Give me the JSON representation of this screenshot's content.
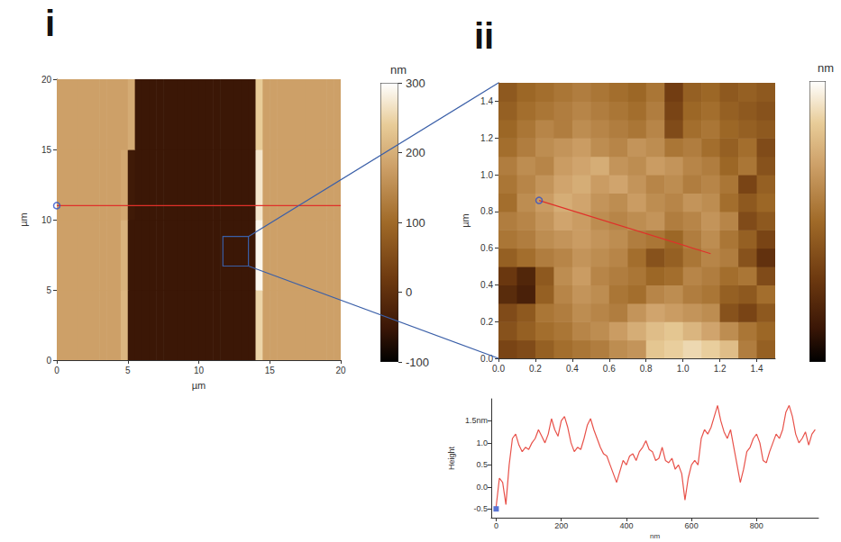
{
  "chart_data": [
    {
      "type": "heatmap",
      "panel": "i",
      "x_label": "µm",
      "y_label": "µm",
      "xlim": [
        0,
        20
      ],
      "ylim": [
        0,
        20
      ],
      "xticks": [
        0,
        5,
        10,
        15,
        20
      ],
      "yticks": [
        0,
        5,
        10,
        15,
        20
      ],
      "x_edges": [
        0,
        0.5,
        1,
        1.5,
        2,
        2.5,
        3,
        3.5,
        4,
        4.5,
        5,
        5.5,
        6,
        6.5,
        7,
        7.5,
        8,
        8.5,
        9,
        9.5,
        10,
        10.5,
        11,
        11.5,
        12,
        12.5,
        13,
        13.5,
        14,
        14.5,
        15,
        15.5,
        16,
        16.5,
        17,
        17.5,
        18,
        18.5,
        19,
        19.5,
        20
      ],
      "y_edges": [
        0,
        5,
        10,
        15,
        20
      ],
      "cells": [
        [
          180,
          180,
          180,
          180,
          180,
          180,
          180,
          180,
          180,
          210,
          -50,
          -50,
          -50,
          -50,
          -50,
          -50,
          -50,
          -50,
          -50,
          -50,
          -50,
          -50,
          -50,
          -50,
          -50,
          -50,
          -50,
          -50,
          250,
          180,
          180,
          180,
          180,
          180,
          180,
          180,
          180,
          180,
          180,
          180
        ],
        [
          180,
          180,
          180,
          180,
          180,
          180,
          180,
          180,
          180,
          205,
          -50,
          -50,
          -50,
          -50,
          -50,
          -50,
          -50,
          -50,
          -50,
          -50,
          -50,
          -50,
          -50,
          -50,
          -50,
          -50,
          -50,
          -50,
          290,
          180,
          180,
          180,
          180,
          180,
          180,
          180,
          180,
          180,
          180,
          180
        ],
        [
          180,
          180,
          180,
          180,
          180,
          180,
          180,
          180,
          180,
          190,
          -45,
          -50,
          -50,
          -50,
          -50,
          -50,
          -50,
          -50,
          -50,
          -50,
          -50,
          -50,
          -50,
          -50,
          -50,
          -50,
          -50,
          -50,
          270,
          180,
          180,
          180,
          180,
          180,
          180,
          180,
          180,
          180,
          180,
          180
        ],
        [
          180,
          180,
          180,
          180,
          180,
          180,
          180,
          180,
          180,
          180,
          195,
          -50,
          -50,
          -50,
          -50,
          -50,
          -50,
          -50,
          -50,
          -50,
          -50,
          -50,
          -50,
          -50,
          -50,
          -50,
          -50,
          -50,
          240,
          180,
          180,
          180,
          180,
          180,
          180,
          180,
          180,
          180,
          180,
          180
        ]
      ],
      "colorbar": {
        "title": "nm",
        "range": [
          -100,
          300
        ],
        "ticks": [
          -100,
          0,
          100,
          200,
          300
        ]
      },
      "profile_line": {
        "x": [
          0,
          20
        ],
        "y": [
          11,
          11
        ]
      },
      "zoom_box": {
        "x": [
          11.7,
          13.5
        ],
        "y": [
          6.7,
          8.8
        ]
      }
    },
    {
      "type": "heatmap",
      "panel": "ii",
      "y_label": "µm",
      "xlim": [
        0,
        1.5
      ],
      "ylim": [
        0,
        1.5
      ],
      "xticks": [
        {
          "value": 0,
          "label": "0.0"
        },
        0.2,
        0.4,
        0.6,
        0.8,
        {
          "value": 1,
          "label": "1.0"
        },
        1.2,
        1.4
      ],
      "yticks": [
        {
          "value": 0,
          "label": "0.0"
        },
        0.2,
        0.4,
        0.6,
        0.8,
        {
          "value": 1,
          "label": "1.0"
        },
        1.2,
        1.4
      ],
      "x_edges": [
        0,
        0.1,
        0.2,
        0.3,
        0.4,
        0.5,
        0.6,
        0.7,
        0.8,
        0.9,
        1,
        1.1,
        1.2,
        1.3,
        1.4,
        1.5
      ],
      "y_edges": [
        0,
        0.1,
        0.2,
        0.3,
        0.4,
        0.5,
        0.6,
        0.7,
        0.8,
        0.9,
        1,
        1.1,
        1.2,
        1.3,
        1.4,
        1.5
      ],
      "cells": [
        [
          0.2,
          0.3,
          0.6,
          0.8,
          0.9,
          1.0,
          1.2,
          1.3,
          1.9,
          2.0,
          2.1,
          2.0,
          1.8,
          1.0,
          0.6
        ],
        [
          0.4,
          0.6,
          0.8,
          0.9,
          1.1,
          1.2,
          1.4,
          1.6,
          1.8,
          1.9,
          1.7,
          1.5,
          1.2,
          0.9,
          0.7
        ],
        [
          0.3,
          0.5,
          0.9,
          1.0,
          1.2,
          1.1,
          1.0,
          1.3,
          1.5,
          1.4,
          1.3,
          1.2,
          0.4,
          0.2,
          0.5
        ],
        [
          -0.2,
          -0.4,
          0.6,
          1.1,
          1.3,
          1.2,
          0.9,
          0.8,
          1.1,
          1.2,
          1.0,
          0.9,
          0.6,
          0.5,
          0.8
        ],
        [
          0.0,
          -0.3,
          0.5,
          1.2,
          1.4,
          1.1,
          1.0,
          0.9,
          0.7,
          0.8,
          1.1,
          1.0,
          0.8,
          0.9,
          0.3
        ],
        [
          0.6,
          0.8,
          1.0,
          1.1,
          1.3,
          1.2,
          1.1,
          0.8,
          0.4,
          0.6,
          0.9,
          1.1,
          1.0,
          0.4,
          -0.1
        ],
        [
          0.9,
          1.0,
          1.2,
          1.3,
          1.4,
          1.3,
          1.2,
          1.0,
          0.9,
          0.7,
          1.0,
          1.2,
          0.9,
          0.6,
          0.2
        ],
        [
          1.0,
          1.1,
          1.3,
          1.5,
          1.4,
          1.2,
          1.1,
          1.2,
          1.3,
          1.0,
          1.1,
          1.3,
          1.1,
          0.3,
          0.5
        ],
        [
          0.8,
          1.2,
          1.4,
          1.6,
          1.5,
          1.3,
          1.2,
          1.4,
          1.2,
          1.1,
          1.3,
          1.2,
          0.8,
          0.5,
          0.7
        ],
        [
          0.9,
          1.1,
          1.3,
          1.5,
          1.6,
          1.4,
          1.5,
          1.3,
          1.1,
          1.2,
          1.0,
          1.1,
          0.9,
          0.2,
          0.6
        ],
        [
          1.0,
          1.2,
          1.1,
          1.4,
          1.5,
          1.6,
          1.3,
          1.2,
          1.4,
          1.3,
          1.1,
          1.0,
          0.7,
          0.9,
          0.4
        ],
        [
          0.8,
          1.0,
          1.2,
          1.3,
          1.4,
          1.2,
          1.1,
          1.3,
          1.2,
          0.9,
          1.0,
          0.8,
          0.6,
          0.8,
          0.3
        ],
        [
          0.7,
          0.9,
          1.1,
          1.0,
          1.2,
          1.1,
          1.0,
          0.9,
          1.1,
          0.3,
          0.8,
          0.9,
          0.7,
          0.6,
          0.5
        ],
        [
          0.6,
          0.8,
          0.9,
          1.0,
          1.1,
          1.0,
          0.9,
          0.8,
          1.0,
          0.2,
          0.7,
          0.8,
          0.6,
          0.5,
          0.4
        ],
        [
          0.5,
          0.7,
          0.8,
          0.9,
          1.0,
          0.9,
          0.8,
          0.7,
          0.9,
          0.1,
          0.6,
          0.7,
          0.5,
          0.6,
          0.5
        ]
      ],
      "colorbar": {
        "title": "nm",
        "range": [
          -1,
          2.5
        ]
      },
      "profile_line": {
        "x": [
          0.22,
          1.15
        ],
        "y": [
          0.86,
          0.57
        ]
      }
    },
    {
      "type": "line",
      "x_label": "nm",
      "y_label": "Height",
      "color": "#e8524a",
      "xlim": [
        -15,
        990
      ],
      "ylim": [
        -0.7,
        2.0
      ],
      "xticks": [
        0,
        200,
        400,
        600,
        800
      ],
      "yticks": [
        -0.5,
        {
          "value": 0,
          "label": "0.0"
        },
        0.5,
        {
          "value": 1,
          "label": "1.0"
        },
        {
          "value": 1.5,
          "label": "1.5nm"
        }
      ],
      "cursor": [
        0,
        -0.5
      ],
      "x": [
        0,
        10,
        20,
        30,
        40,
        50,
        60,
        70,
        80,
        90,
        100,
        110,
        120,
        130,
        140,
        150,
        160,
        170,
        180,
        190,
        200,
        210,
        220,
        230,
        240,
        250,
        260,
        270,
        280,
        290,
        300,
        310,
        320,
        330,
        340,
        350,
        360,
        370,
        380,
        390,
        400,
        410,
        420,
        430,
        440,
        450,
        460,
        470,
        480,
        490,
        500,
        510,
        520,
        530,
        540,
        550,
        560,
        570,
        580,
        590,
        600,
        610,
        620,
        630,
        640,
        650,
        660,
        670,
        680,
        690,
        700,
        710,
        720,
        730,
        740,
        750,
        760,
        770,
        780,
        790,
        800,
        810,
        820,
        830,
        840,
        850,
        860,
        870,
        880,
        890,
        900,
        910,
        920,
        930,
        940,
        950,
        960,
        970,
        980
      ],
      "values": [
        -0.45,
        0.2,
        0.1,
        -0.4,
        0.5,
        1.1,
        1.2,
        0.95,
        0.8,
        0.9,
        0.85,
        1.0,
        1.1,
        1.3,
        1.15,
        1.0,
        1.2,
        1.55,
        1.3,
        1.15,
        1.5,
        1.6,
        1.35,
        1.0,
        0.8,
        0.9,
        0.85,
        1.1,
        1.4,
        1.55,
        1.3,
        1.1,
        0.9,
        0.75,
        0.7,
        0.5,
        0.3,
        0.1,
        0.35,
        0.6,
        0.5,
        0.7,
        0.75,
        0.6,
        0.8,
        0.9,
        1.05,
        0.85,
        0.8,
        0.6,
        0.65,
        0.9,
        0.6,
        0.55,
        0.65,
        0.4,
        0.5,
        0.3,
        -0.3,
        0.2,
        0.5,
        0.6,
        0.5,
        1.1,
        1.3,
        1.2,
        1.35,
        1.6,
        1.85,
        1.5,
        1.25,
        1.1,
        1.3,
        0.9,
        0.5,
        0.1,
        0.4,
        0.8,
        0.9,
        1.1,
        1.2,
        1.0,
        0.6,
        0.55,
        0.8,
        1.0,
        1.2,
        1.1,
        1.3,
        1.7,
        1.85,
        1.6,
        1.2,
        1.0,
        1.1,
        1.25,
        0.95,
        1.2,
        1.3
      ]
    }
  ]
}
